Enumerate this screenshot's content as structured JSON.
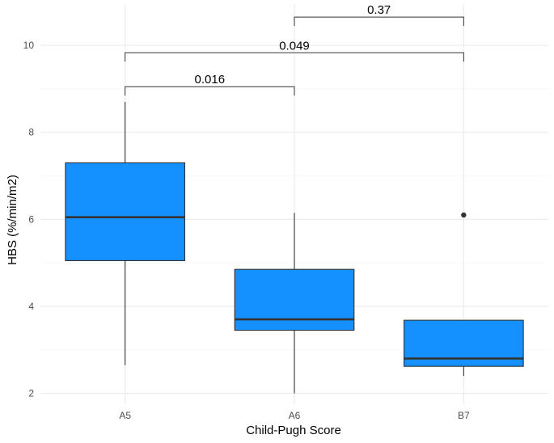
{
  "chart_data": {
    "type": "boxplot",
    "xlabel": "Child-Pugh Score",
    "ylabel": "HBS (%/min/m2)",
    "categories": [
      "A5",
      "A6",
      "B7"
    ],
    "ylim": [
      1.75,
      10.95
    ],
    "yticks": [
      2,
      4,
      6,
      8,
      10
    ],
    "grid": true,
    "box_color": "#1490ff",
    "boxes": [
      {
        "category": "A5",
        "whisker_low": 2.65,
        "q1": 5.05,
        "median": 6.05,
        "q3": 7.3,
        "whisker_high": 8.7,
        "outliers": []
      },
      {
        "category": "A6",
        "whisker_low": 2.0,
        "q1": 3.45,
        "median": 3.7,
        "q3": 4.85,
        "whisker_high": 6.15,
        "outliers": []
      },
      {
        "category": "B7",
        "whisker_low": 2.4,
        "q1": 2.62,
        "median": 2.8,
        "q3": 3.68,
        "whisker_high": 3.68,
        "outliers": [
          6.1
        ]
      }
    ],
    "comparisons": [
      {
        "from": "A6",
        "to": "B7",
        "label": "0.37",
        "y": 10.65
      },
      {
        "from": "A5",
        "to": "B7",
        "label": "0.049",
        "y": 9.83
      },
      {
        "from": "A5",
        "to": "A6",
        "label": "0.016",
        "y": 9.05
      }
    ]
  }
}
